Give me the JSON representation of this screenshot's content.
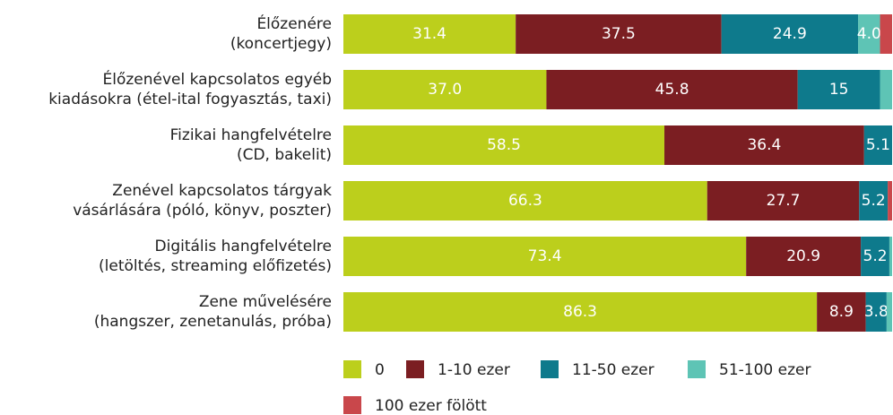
{
  "chart_data": {
    "type": "stacked-bar-horizontal",
    "categories": [
      [
        "Élőzenére",
        "(koncertjegy)"
      ],
      [
        "Élőzenével kapcsolatos egyéb",
        "kiadásokra (étel-ital fogyasztás, taxi)"
      ],
      [
        "Fizikai hangfelvételre",
        "(CD, bakelit)"
      ],
      [
        "Zenével kapcsolatos tárgyak",
        "vásárlására (póló, könyv, poszter)"
      ],
      [
        "Digitális hangfelvételre",
        "(letöltés, streaming előfizetés)"
      ],
      [
        "Zene művelésére",
        "(hangszer, zenetanulás, próba)"
      ]
    ],
    "xlim": [
      0,
      100
    ],
    "series": [
      {
        "name": "0",
        "color": "#bccf1c",
        "values": [
          31.4,
          37.0,
          58.5,
          66.3,
          73.4,
          86.3
        ],
        "value_labels": [
          "31.4",
          "37.0",
          "58.5",
          "66.3",
          "73.4",
          "86.3"
        ]
      },
      {
        "name": "1-10 ezer",
        "color": "#7b1e22",
        "values": [
          37.5,
          45.8,
          36.4,
          27.7,
          20.9,
          8.9
        ],
        "value_labels": [
          "37.5",
          "45.8",
          "36.4",
          "27.7",
          "20.9",
          "8.9"
        ]
      },
      {
        "name": "11-50 ezer",
        "color": "#0e7a8c",
        "values": [
          24.9,
          15,
          5.1,
          5.2,
          5.2,
          3.8
        ],
        "value_labels": [
          "24.9",
          "15",
          "5.1",
          "5.2",
          "5.2",
          "3.8"
        ]
      },
      {
        "name": "51-100 ezer",
        "color": "#5ec4b5",
        "values": [
          4.0,
          2.2,
          0,
          0,
          0.5,
          1.0
        ],
        "value_labels": [
          "4.0",
          null,
          null,
          null,
          null,
          null
        ]
      },
      {
        "name": "100 ezer fölött",
        "color": "#c9474b",
        "values": [
          2.2,
          0,
          0,
          0.8,
          0,
          0
        ],
        "value_labels": [
          null,
          null,
          null,
          null,
          null,
          null
        ]
      }
    ],
    "legend": "bottom"
  }
}
